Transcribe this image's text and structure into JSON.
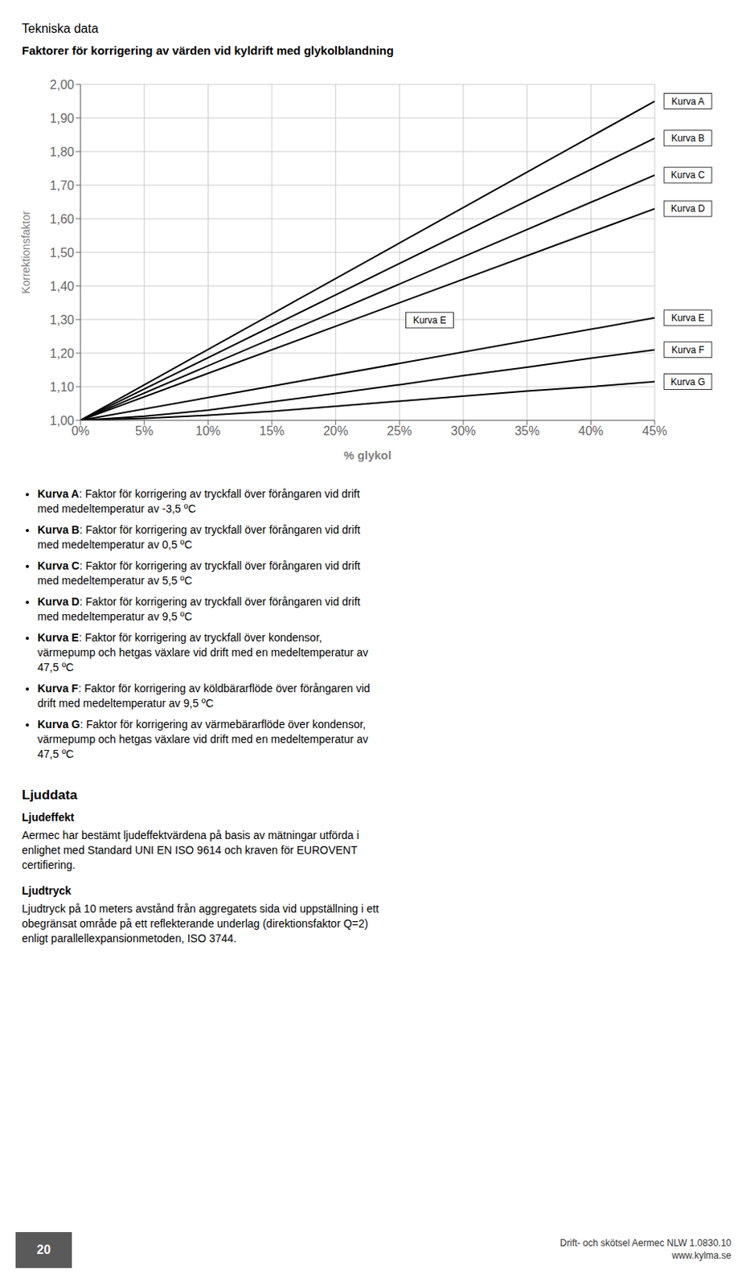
{
  "header": "Tekniska data",
  "chart_data": {
    "type": "line",
    "title": "Faktorer för korrigering av värden vid kyldrift med glykolblandning",
    "xlabel": "% glykol",
    "ylabel": "Korrektionsfaktor",
    "xlim": [
      0,
      0.45
    ],
    "ylim": [
      1.0,
      2.0
    ],
    "xticks": [
      {
        "value": 0.0,
        "label": "0%"
      },
      {
        "value": 0.05,
        "label": "5%"
      },
      {
        "value": 0.1,
        "label": "10%"
      },
      {
        "value": 0.15,
        "label": "15%"
      },
      {
        "value": 0.2,
        "label": "20%"
      },
      {
        "value": 0.25,
        "label": "25%"
      },
      {
        "value": 0.3,
        "label": "30%"
      },
      {
        "value": 0.35,
        "label": "35%"
      },
      {
        "value": 0.4,
        "label": "40%"
      },
      {
        "value": 0.45,
        "label": "45%"
      }
    ],
    "yticks": [
      {
        "value": 1.0,
        "label": "1,00"
      },
      {
        "value": 1.1,
        "label": "1,10"
      },
      {
        "value": 1.2,
        "label": "1,20"
      },
      {
        "value": 1.3,
        "label": "1,30"
      },
      {
        "value": 1.4,
        "label": "1,40"
      },
      {
        "value": 1.5,
        "label": "1,50"
      },
      {
        "value": 1.6,
        "label": "1,60"
      },
      {
        "value": 1.7,
        "label": "1,70"
      },
      {
        "value": 1.8,
        "label": "1,80"
      },
      {
        "value": 1.9,
        "label": "1,90"
      },
      {
        "value": 2.0,
        "label": "2,00"
      }
    ],
    "grid": true,
    "series": [
      {
        "name": "Kurva A",
        "color": "black",
        "x": [
          0,
          0.45
        ],
        "values": [
          1.0,
          1.95
        ]
      },
      {
        "name": "Kurva B",
        "color": "black",
        "x": [
          0,
          0.45
        ],
        "values": [
          1.0,
          1.84
        ]
      },
      {
        "name": "Kurva C",
        "color": "black",
        "x": [
          0,
          0.45
        ],
        "values": [
          1.0,
          1.73
        ]
      },
      {
        "name": "Kurva D",
        "color": "black",
        "x": [
          0,
          0.45
        ],
        "values": [
          1.0,
          1.63
        ]
      },
      {
        "name": "Kurva E",
        "color": "black",
        "x": [
          0,
          0.45
        ],
        "values": [
          1.0,
          1.305
        ]
      },
      {
        "name": "Kurva F",
        "color": "black",
        "x": [
          0,
          0.05,
          0.1,
          0.15,
          0.2,
          0.25,
          0.3,
          0.35,
          0.4,
          0.45
        ],
        "values": [
          1.0,
          1.012,
          1.03,
          1.055,
          1.08,
          1.106,
          1.133,
          1.158,
          1.185,
          1.21
        ]
      },
      {
        "name": "Kurva G",
        "color": "black",
        "x": [
          0,
          0.05,
          0.1,
          0.15,
          0.2,
          0.25,
          0.3,
          0.35,
          0.4,
          0.45
        ],
        "values": [
          1.0,
          1.006,
          1.015,
          1.027,
          1.042,
          1.057,
          1.072,
          1.087,
          1.1,
          1.115
        ]
      }
    ],
    "annotations": [
      {
        "text": "Kurva E",
        "x": 0.255,
        "y": 1.298
      }
    ]
  },
  "descriptions": [
    {
      "label": "Kurva A",
      "lines": [
        ": Faktor för korrigering av tryckfall över förångaren vid drift",
        "med medeltemperatur av -3,5 ºC"
      ]
    },
    {
      "label": "Kurva B",
      "lines": [
        ": Faktor för korrigering av tryckfall över förångaren vid drift",
        "med medeltemperatur av 0,5 ºC"
      ]
    },
    {
      "label": "Kurva C",
      "lines": [
        ": Faktor för korrigering av tryckfall över förångaren vid drift",
        "med medeltemperatur av 5,5 ºC"
      ]
    },
    {
      "label": "Kurva D",
      "lines": [
        ": Faktor för korrigering av tryckfall över förångaren vid drift",
        "med medeltemperatur av 9,5 ºC"
      ]
    },
    {
      "label": "Kurva E",
      "lines": [
        ": Faktor för korrigering av tryckfall över kondensor,",
        "värmepump och hetgas växlare vid drift med en medeltemperatur av",
        "47,5 ºC"
      ]
    },
    {
      "label": "Kurva F",
      "lines": [
        ": Faktor för korrigering av köldbärarflöde över förångaren vid",
        "drift med medeltemperatur av 9,5 ºC"
      ]
    },
    {
      "label": "Kurva G",
      "lines": [
        ": Faktor för korrigering av värmebärarflöde över kondensor,",
        "värmepump och hetgas växlare vid drift med en medeltemperatur av",
        "47,5 ºC"
      ]
    }
  ],
  "section": {
    "title": "Ljuddata",
    "parts": [
      {
        "title": "Ljudeffekt",
        "lines": [
          "Aermec har bestämt ljudeffektvärdena på basis av mätningar utförda i",
          "enlighet med Standard UNI EN ISO 9614 och kraven för EUROVENT",
          "certifiering."
        ]
      },
      {
        "title": "Ljudtryck",
        "lines": [
          "Ljudtryck på 10 meters avstånd från aggregatets sida vid uppställning i ett",
          "obegränsat område på ett reflekterande underlag (direktionsfaktor Q=2)",
          "enligt parallellexpansionmetoden, ISO 3744."
        ]
      }
    ]
  },
  "footer": {
    "page": "20",
    "lines": [
      "Drift- och skötsel Aermec NLW 1.0830.10",
      "www.kylma.se"
    ]
  }
}
